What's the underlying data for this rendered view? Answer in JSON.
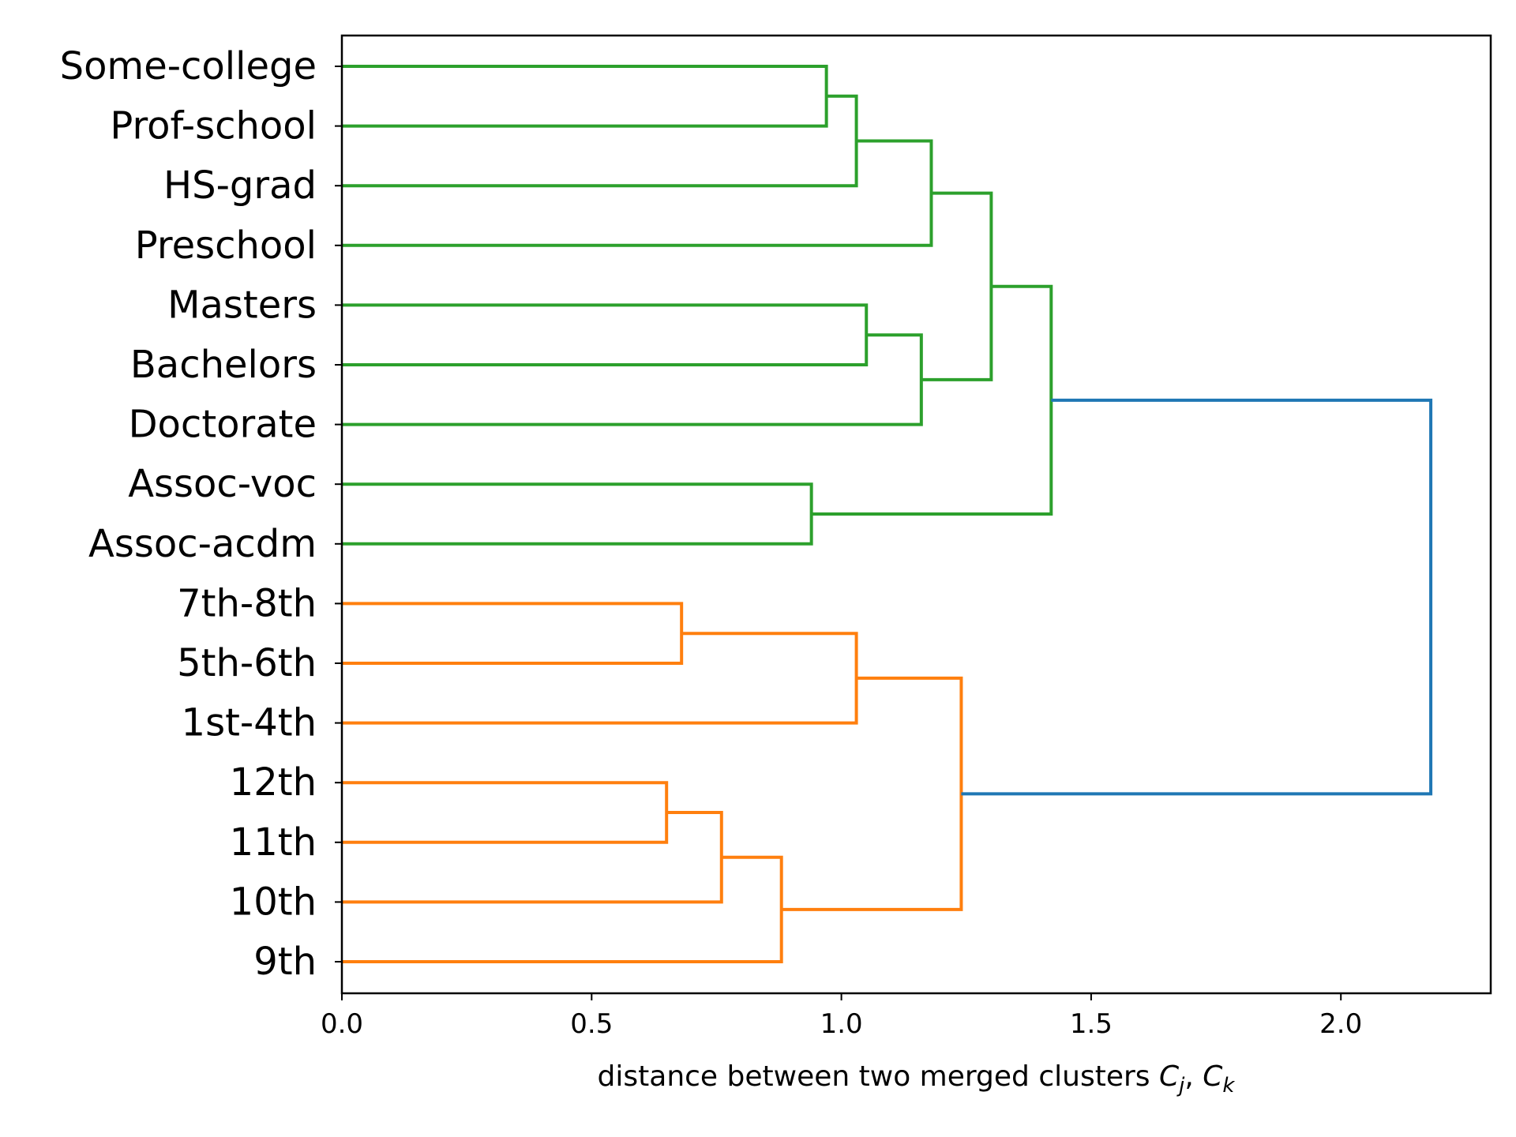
{
  "chart_data": {
    "type": "dendrogram",
    "orientation": "horizontal",
    "title": "",
    "xlabel": {
      "text": "distance between two merged clusters ",
      "math_symbol": "C",
      "sub_j": "j",
      "separator": ", ",
      "sub_k": "k"
    },
    "xlim": [
      0,
      2.3
    ],
    "xticks": [
      {
        "value": 0.0,
        "label": "0.0"
      },
      {
        "value": 0.5,
        "label": "0.5"
      },
      {
        "value": 1.0,
        "label": "1.0"
      },
      {
        "value": 1.5,
        "label": "1.5"
      },
      {
        "value": 2.0,
        "label": "2.0"
      }
    ],
    "leaves": [
      "Some-college",
      "Prof-school",
      "HS-grad",
      "Preschool",
      "Masters",
      "Bachelors",
      "Doctorate",
      "Assoc-voc",
      "Assoc-acdm",
      "7th-8th",
      "5th-6th",
      "1st-4th",
      "12th",
      "11th",
      "10th",
      "9th"
    ],
    "colors": {
      "green": "#2ca02c",
      "orange": "#ff7f0e",
      "blue": "#1f77b4"
    },
    "merges": [
      {
        "left": "Some-college",
        "right": "Prof-school",
        "distance": 0.97,
        "color": "green"
      },
      {
        "left": "m0",
        "right": "HS-grad",
        "distance": 1.03,
        "color": "green"
      },
      {
        "left": "m1",
        "right": "Preschool",
        "distance": 1.18,
        "color": "green"
      },
      {
        "left": "Masters",
        "right": "Bachelors",
        "distance": 1.05,
        "color": "green"
      },
      {
        "left": "m3",
        "right": "Doctorate",
        "distance": 1.16,
        "color": "green"
      },
      {
        "left": "m2",
        "right": "m4",
        "distance": 1.3,
        "color": "green"
      },
      {
        "left": "Assoc-voc",
        "right": "Assoc-acdm",
        "distance": 0.94,
        "color": "green"
      },
      {
        "left": "m5",
        "right": "m6",
        "distance": 1.42,
        "color": "green"
      },
      {
        "left": "7th-8th",
        "right": "5th-6th",
        "distance": 0.68,
        "color": "orange"
      },
      {
        "left": "m8",
        "right": "1st-4th",
        "distance": 1.03,
        "color": "orange"
      },
      {
        "left": "12th",
        "right": "11th",
        "distance": 0.65,
        "color": "orange"
      },
      {
        "left": "m10",
        "right": "10th",
        "distance": 0.76,
        "color": "orange"
      },
      {
        "left": "m11",
        "right": "9th",
        "distance": 0.88,
        "color": "orange"
      },
      {
        "left": "m9",
        "right": "m12",
        "distance": 1.24,
        "color": "orange"
      },
      {
        "left": "m7",
        "right": "m13",
        "distance": 2.18,
        "color": "blue"
      }
    ]
  }
}
